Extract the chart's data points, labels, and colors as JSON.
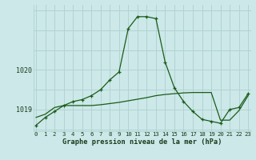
{
  "hours": [
    0,
    1,
    2,
    3,
    4,
    5,
    6,
    7,
    8,
    9,
    10,
    11,
    12,
    13,
    14,
    15,
    16,
    17,
    18,
    19,
    20,
    21,
    22,
    23
  ],
  "line1": [
    1018.6,
    1018.8,
    1018.95,
    1019.1,
    1019.2,
    1019.25,
    1019.35,
    1019.5,
    1019.75,
    1019.95,
    1021.05,
    1021.35,
    1021.35,
    1021.3,
    1020.2,
    1019.55,
    1019.2,
    1018.95,
    1018.75,
    1018.7,
    1018.65,
    1019.0,
    1019.05,
    1019.4
  ],
  "line2": [
    1018.8,
    1018.88,
    1019.05,
    1019.1,
    1019.1,
    1019.1,
    1019.1,
    1019.12,
    1019.15,
    1019.18,
    1019.22,
    1019.26,
    1019.3,
    1019.35,
    1019.38,
    1019.4,
    1019.42,
    1019.43,
    1019.43,
    1019.43,
    1018.73,
    1018.73,
    1018.97,
    1019.35
  ],
  "bg_color": "#cce8e8",
  "grid_color": "#b0d0d0",
  "line_color": "#1a5c1a",
  "xlabel": "Graphe pression niveau de la mer (hPa)",
  "ylim": [
    1018.45,
    1021.65
  ],
  "yticks": [
    1019,
    1020
  ],
  "xticks": [
    0,
    1,
    2,
    3,
    4,
    5,
    6,
    7,
    8,
    9,
    10,
    11,
    12,
    13,
    14,
    15,
    16,
    17,
    18,
    19,
    20,
    21,
    22,
    23
  ]
}
